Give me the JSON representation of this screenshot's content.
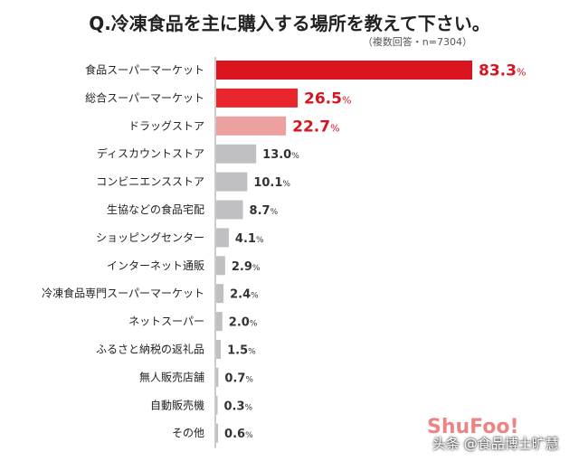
{
  "title": "Q.冷凍食品を主に購入する場所を教えて下さい。",
  "note": "（複数回答・n=7304）",
  "logo_text": "ShuFoo!",
  "watermark": "头条 @食品博士旷慧",
  "colors": {
    "top1": "#d9141e",
    "top2": "#e8262b",
    "top3": "#eca0a0",
    "other": "#c0c0c2",
    "label_red": "#d9141e",
    "label_dark": "#333333"
  },
  "chart_data": {
    "type": "bar",
    "orientation": "horizontal",
    "categories": [
      "食品スーパーマーケット",
      "総合スーパーマーケット",
      "ドラッグストア",
      "ディスカウントストア",
      "コンビニエンスストア",
      "生協などの食品宅配",
      "ショッピングセンター",
      "インターネット通販",
      "冷凍食品専門スーパーマーケット",
      "ネットスーパー",
      "ふるさと納税の返礼品",
      "無人販売店舗",
      "自動販売機",
      "その他"
    ],
    "values": [
      83.3,
      26.5,
      22.7,
      13.0,
      10.1,
      8.7,
      4.1,
      2.9,
      2.4,
      2.0,
      1.5,
      0.7,
      0.3,
      0.6
    ],
    "value_labels": [
      "83.3",
      "26.5",
      "22.7",
      "13.0",
      "10.1",
      "8.7",
      "4.1",
      "2.9",
      "2.4",
      "2.0",
      "1.5",
      "0.7",
      "0.3",
      "0.6"
    ],
    "unit": "%",
    "xlim": [
      0,
      83.3
    ],
    "grid": false,
    "highlight_top": 3
  }
}
